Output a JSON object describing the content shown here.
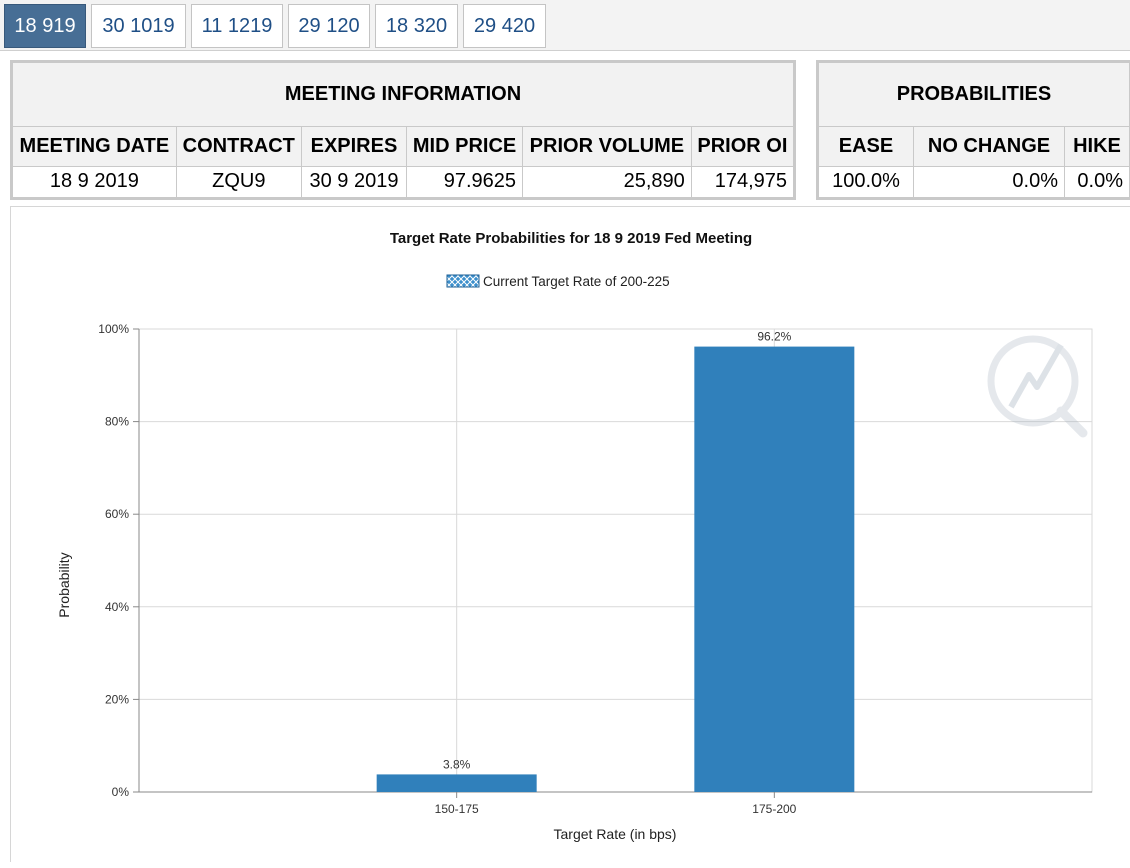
{
  "tabs": [
    {
      "label": "18 919",
      "active": true
    },
    {
      "label": "30 1019",
      "active": false
    },
    {
      "label": "11 1219",
      "active": false
    },
    {
      "label": "29 120",
      "active": false
    },
    {
      "label": "18 320",
      "active": false
    },
    {
      "label": "29 420",
      "active": false
    }
  ],
  "meeting": {
    "title": "MEETING INFORMATION",
    "columns": [
      "MEETING DATE",
      "CONTRACT",
      "EXPIRES",
      "MID PRICE",
      "PRIOR VOLUME",
      "PRIOR OI"
    ],
    "row": [
      "18 9 2019",
      "ZQU9",
      "30 9 2019",
      "97.9625",
      "25,890",
      "174,975"
    ]
  },
  "probabilities": {
    "title": "PROBABILITIES",
    "columns": [
      "EASE",
      "NO CHANGE",
      "HIKE"
    ],
    "row": [
      "100.0%",
      "0.0%",
      "0.0%"
    ]
  },
  "chart_data": {
    "type": "bar",
    "title": "Target Rate Probabilities for 18 9 2019 Fed Meeting",
    "legend": "Current Target Rate of 200-225",
    "legend_position": "top-center",
    "xlabel": "Target Rate (in bps)",
    "ylabel": "Probability",
    "categories": [
      "150-175",
      "175-200"
    ],
    "values": [
      3.8,
      96.2
    ],
    "value_labels": [
      "3.8%",
      "96.2%"
    ],
    "ylim": [
      0,
      100
    ],
    "yticks": [
      0,
      20,
      40,
      60,
      80,
      100
    ],
    "ytick_labels": [
      "0%",
      "20%",
      "40%",
      "60%",
      "80%",
      "100%"
    ],
    "grid": true,
    "colors": {
      "bar": "#3080bb",
      "legend_swatch": "#3c8fcc",
      "grid": "#d9d9d9"
    }
  }
}
